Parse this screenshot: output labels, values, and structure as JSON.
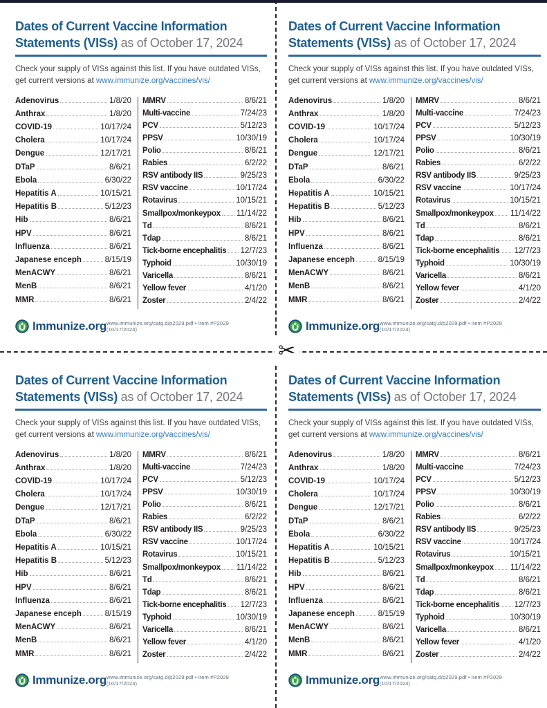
{
  "card": {
    "title_line1": "Dates of Current Vaccine Information",
    "title_line2": "Statements (VISs)",
    "title_suffix": " as of October 17, 2024",
    "intro_text": "Check your supply of VISs against this list. If you have outdated VISs, get current versions at ",
    "intro_link": "www.immunize.org/vaccines/vis/",
    "footer_brand": "Immunize.org",
    "footer_note": "www.immunize.org/catg.d/p2029.pdf • Item #P2029 (10/17/2024)",
    "columns": {
      "left": [
        {
          "name": "Adenovirus",
          "date": "1/8/20"
        },
        {
          "name": "Anthrax",
          "date": "1/8/20"
        },
        {
          "name": "COVID-19",
          "date": "10/17/24"
        },
        {
          "name": "Cholera",
          "date": "10/17/24"
        },
        {
          "name": "Dengue",
          "date": "12/17/21"
        },
        {
          "name": "DTaP",
          "date": "8/6/21"
        },
        {
          "name": "Ebola",
          "date": "6/30/22"
        },
        {
          "name": "Hepatitis A",
          "date": "10/15/21"
        },
        {
          "name": "Hepatitis B",
          "date": "5/12/23"
        },
        {
          "name": "Hib",
          "date": "8/6/21"
        },
        {
          "name": "HPV",
          "date": "8/6/21"
        },
        {
          "name": "Influenza",
          "date": "8/6/21"
        },
        {
          "name": "Japanese enceph",
          "date": "8/15/19"
        },
        {
          "name": "MenACWY",
          "date": "8/6/21"
        },
        {
          "name": "MenB",
          "date": "8/6/21"
        },
        {
          "name": "MMR",
          "date": "8/6/21"
        }
      ],
      "right": [
        {
          "name": "MMRV",
          "date": "8/6/21"
        },
        {
          "name": "Multi-vaccine",
          "date": "7/24/23"
        },
        {
          "name": "PCV",
          "date": "5/12/23"
        },
        {
          "name": "PPSV",
          "date": "10/30/19"
        },
        {
          "name": "Polio",
          "date": "8/6/21"
        },
        {
          "name": "Rabies",
          "date": "6/2/22"
        },
        {
          "name": "RSV antibody IIS",
          "date": "9/25/23"
        },
        {
          "name": "RSV vaccine",
          "date": "10/17/24"
        },
        {
          "name": "Rotavirus",
          "date": "10/15/21"
        },
        {
          "name": "Smallpox/monkeypox",
          "date": "11/14/22"
        },
        {
          "name": "Td",
          "date": "8/6/21"
        },
        {
          "name": "Tdap",
          "date": "8/6/21"
        },
        {
          "name": "Tick-borne encephalitis",
          "date": "12/7/23"
        },
        {
          "name": "Typhoid",
          "date": "10/30/19"
        },
        {
          "name": "Varicella",
          "date": "8/6/21"
        },
        {
          "name": "Yellow fever",
          "date": "4/1/20"
        },
        {
          "name": "Zoster",
          "date": "2/4/22"
        }
      ]
    }
  },
  "divider": {
    "scissors_glyph": "✂"
  },
  "colors": {
    "title_blue": "#1e5f8e",
    "rule_blue": "#2b6a9d",
    "link_blue": "#3c7fb8",
    "text_dark": "#232021",
    "suffix_gray": "#77787b",
    "brand_navy": "#1d4e7e",
    "logo_green": "#3da34a"
  }
}
